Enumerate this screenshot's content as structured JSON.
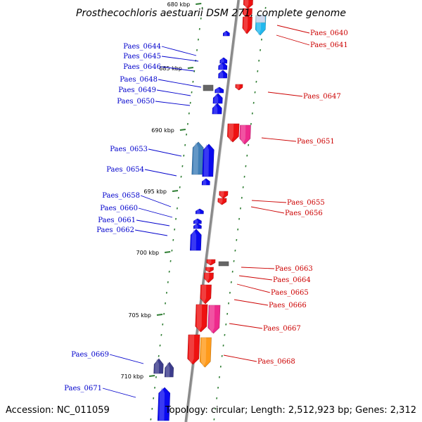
{
  "title": "Prosthecochloris aestuarii DSM 271, complete genome",
  "footer": {
    "accession": "Accession: NC_011059",
    "topology": "Topology: circular; Length: 2,512,923 bp; Genes: 2,312"
  },
  "colors": {
    "backbone": "#8a8a8a",
    "tick": "#2e7d32",
    "forward_label": "#0000cc",
    "reverse_label": "#cc0000",
    "blue": "#0a0aef",
    "steel": "#3f7fb8",
    "red": "#ee1111",
    "magenta": "#ee2a8c",
    "orange": "#ff9a1a",
    "gray": "#666666",
    "cyan": "#22b8ee",
    "navy": "#3c3c8c"
  },
  "ticks": [
    {
      "label": "680 kbp"
    },
    {
      "label": "685 kbp"
    },
    {
      "label": "690 kbp"
    },
    {
      "label": "695 kbp"
    },
    {
      "label": "700 kbp"
    },
    {
      "label": "705 kbp"
    },
    {
      "label": "710 kbp"
    }
  ],
  "genes_forward": [
    {
      "label": "Paes_0644",
      "color": "blue"
    },
    {
      "label": "Paes_0645",
      "color": "blue"
    },
    {
      "label": "Paes_0646",
      "color": "blue"
    },
    {
      "label": "Paes_0648",
      "color": "gray"
    },
    {
      "label": "Paes_0649",
      "color": "blue"
    },
    {
      "label": "Paes_0650",
      "color": "blue"
    },
    {
      "label": "Paes_0653",
      "color": "steel"
    },
    {
      "label": "Paes_0654",
      "color": "blue"
    },
    {
      "label": "Paes_0658",
      "color": "blue"
    },
    {
      "label": "Paes_0660",
      "color": "blue"
    },
    {
      "label": "Paes_0661",
      "color": "blue"
    },
    {
      "label": "Paes_0662",
      "color": "blue"
    },
    {
      "label": "Paes_0669",
      "color": "navy"
    },
    {
      "label": "Paes_0671",
      "color": "blue"
    }
  ],
  "genes_reverse": [
    {
      "label": "Paes_0640",
      "color": "red"
    },
    {
      "label": "Paes_0641",
      "color": "cyan"
    },
    {
      "label": "Paes_0647",
      "color": "red"
    },
    {
      "label": "Paes_0651",
      "color": "magenta"
    },
    {
      "label": "Paes_0655",
      "color": "red"
    },
    {
      "label": "Paes_0656",
      "color": "red"
    },
    {
      "label": "Paes_0663",
      "color": "gray"
    },
    {
      "label": "Paes_0664",
      "color": "red"
    },
    {
      "label": "Paes_0665",
      "color": "red"
    },
    {
      "label": "Paes_0666",
      "color": "red"
    },
    {
      "label": "Paes_0667",
      "color": "magenta"
    },
    {
      "label": "Paes_0668",
      "color": "orange"
    }
  ]
}
